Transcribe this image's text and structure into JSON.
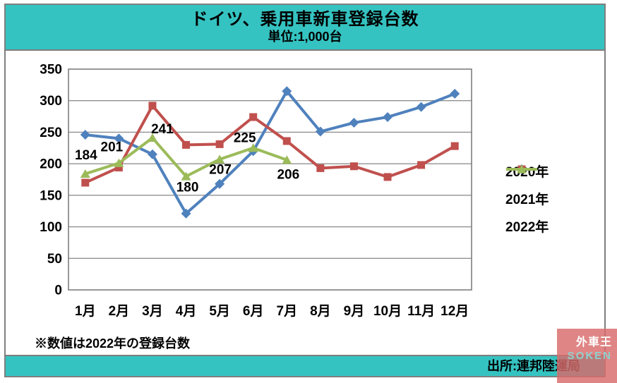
{
  "title": {
    "main": "ドイツ、乗用車新車登録台数",
    "unit": "単位:1,000台"
  },
  "chart_data": {
    "type": "line",
    "categories": [
      "1月",
      "2月",
      "3月",
      "4月",
      "5月",
      "6月",
      "7月",
      "8月",
      "9月",
      "10月",
      "11月",
      "12月"
    ],
    "xlabel": "",
    "ylabel": "",
    "ylim": [
      0,
      350
    ],
    "ytick_step": 50,
    "grid": true,
    "legend_position": "right",
    "series": [
      {
        "name": "2020年",
        "color": "#4F81BD",
        "marker": "diamond",
        "values": [
          246,
          240,
          215,
          121,
          168,
          220,
          315,
          251,
          265,
          274,
          290,
          311
        ]
      },
      {
        "name": "2021年",
        "color": "#C0504D",
        "marker": "square",
        "values": [
          170,
          194,
          292,
          230,
          231,
          274,
          236,
          193,
          196,
          179,
          198,
          228
        ]
      },
      {
        "name": "2022年",
        "color": "#9BBB59",
        "marker": "triangle",
        "values": [
          184,
          201,
          241,
          180,
          207,
          225,
          206
        ],
        "point_labels": [
          "184",
          "201",
          "241",
          "180",
          "207",
          "225",
          "206"
        ]
      }
    ]
  },
  "note": "※数値は2022年の登録台数",
  "source": "出所:連邦陸運局",
  "logo": {
    "line1": "外車王",
    "line2": "SOKEN"
  },
  "colors": {
    "teal": "#35C3C1",
    "frame_border": "#7F7F7F",
    "gridline": "#909090",
    "logo_bg": "rgba(217,106,106,0.82)",
    "logo_accent": "#8FD2CD"
  }
}
